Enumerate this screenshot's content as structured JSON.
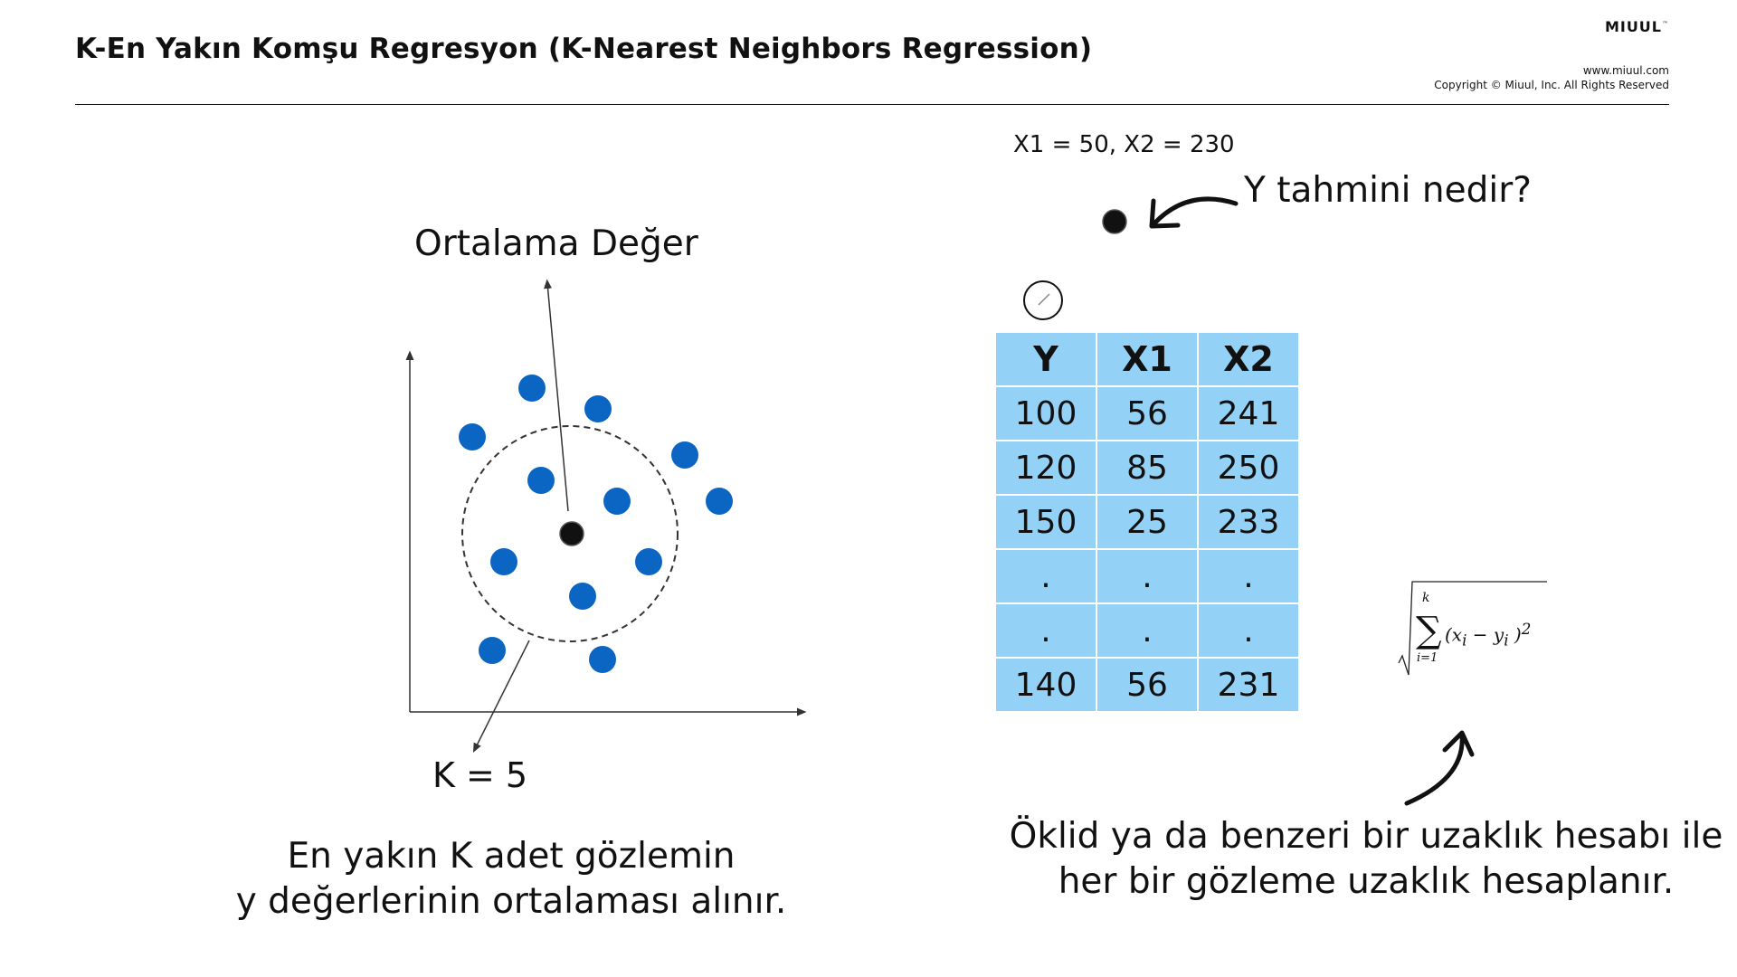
{
  "header": {
    "title": "K-En Yakın Komşu Regresyon (K-Nearest Neighbors Regression)",
    "brand": "MIUUL",
    "brand_tm": "™",
    "url": "www.miuul.com",
    "copyright": "Copyright © Miuul, Inc. All Rights Reserved"
  },
  "left_diagram": {
    "average_label": "Ortalama Değer",
    "k_label": "K = 5",
    "caption_line1": "En yakın K adet gözlemin",
    "caption_line2": "y değerlerinin ortalaması alınır.",
    "colors": {
      "point": "#0b66c3",
      "query": "#111111"
    }
  },
  "right_diagram": {
    "coordinates": "X1 = 50, X2 = 230",
    "question": "Y tahmini nedir?",
    "table": {
      "headers": [
        "Y",
        "X1",
        "X2"
      ],
      "rows": [
        [
          "100",
          "56",
          "241"
        ],
        [
          "120",
          "85",
          "250"
        ],
        [
          "150",
          "25",
          "233"
        ],
        [
          ".",
          ".",
          "."
        ],
        [
          ".",
          ".",
          "."
        ],
        [
          "140",
          "56",
          "231"
        ]
      ],
      "cell_color": "#94d1f7"
    },
    "formula": {
      "upper": "k",
      "lower": "i=1",
      "body": "(x",
      "sub_i": "i",
      "minus": " − y",
      "close": " )",
      "power": "2"
    },
    "caption_line1": "Öklid ya da benzeri bir uzaklık hesabı ile",
    "caption_line2": "her bir gözleme uzaklık hesaplanır."
  }
}
